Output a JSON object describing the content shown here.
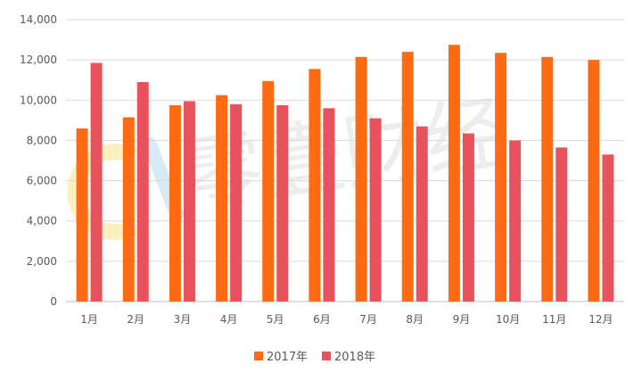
{
  "watermark": {
    "text": "零壹财经"
  },
  "chart_data": {
    "type": "bar",
    "title": "",
    "xlabel": "",
    "ylabel": "",
    "categories": [
      "1月",
      "2月",
      "3月",
      "4月",
      "5月",
      "6月",
      "7月",
      "8月",
      "9月",
      "10月",
      "11月",
      "12月"
    ],
    "series": [
      {
        "name": "2017年",
        "color": "#FF6A13",
        "values": [
          8600,
          9150,
          9750,
          10250,
          10950,
          11550,
          12150,
          12400,
          12750,
          12350,
          12150,
          12000
        ]
      },
      {
        "name": "2018年",
        "color": "#E8525C",
        "values": [
          11850,
          10900,
          9950,
          9800,
          9750,
          9600,
          9100,
          8700,
          8350,
          8000,
          7650,
          7300
        ]
      }
    ],
    "ylim": [
      0,
      14000
    ],
    "yticks": [
      0,
      2000,
      4000,
      6000,
      8000,
      10000,
      12000,
      14000
    ],
    "ytick_labels": [
      "0",
      "2,000",
      "4,000",
      "6,000",
      "8,000",
      "10,000",
      "12,000",
      "14,000"
    ],
    "grid": true,
    "legend_position": "bottom"
  }
}
